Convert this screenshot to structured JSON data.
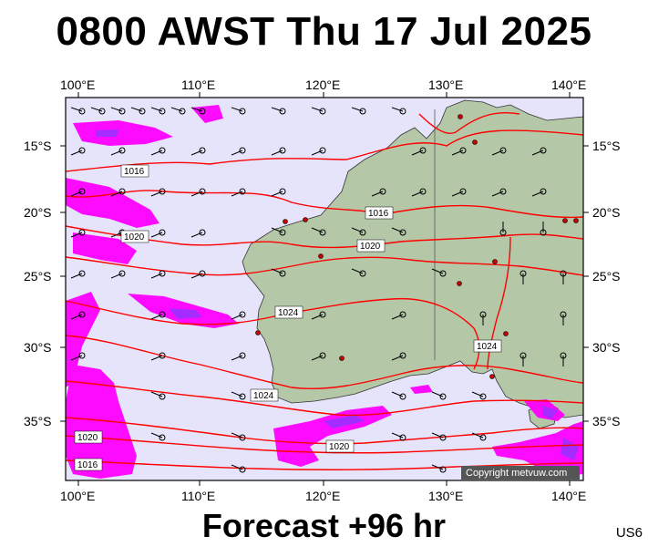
{
  "header": {
    "title": "0800 AWST Thu 17 Jul 2025"
  },
  "footer": {
    "forecast": "Forecast +96 hr",
    "code": "US6",
    "copyright": "Copyright metvuw.com"
  },
  "map": {
    "lon_labels": [
      "100°E",
      "110°E",
      "120°E",
      "130°E",
      "140°E"
    ],
    "lat_labels": [
      "15°S",
      "20°S",
      "25°S",
      "30°S",
      "35°S"
    ],
    "isobar_labels": [
      "1016",
      "1016",
      "1020",
      "1020",
      "1024",
      "1024",
      "1024",
      "1020",
      "1020",
      "1016"
    ],
    "colors": {
      "ocean": "#e6e4fa",
      "land": "#b4c8a8",
      "isobar": "#ff0000",
      "rain": "#ff00ff",
      "rain_heavy": "#9b30ff"
    }
  }
}
